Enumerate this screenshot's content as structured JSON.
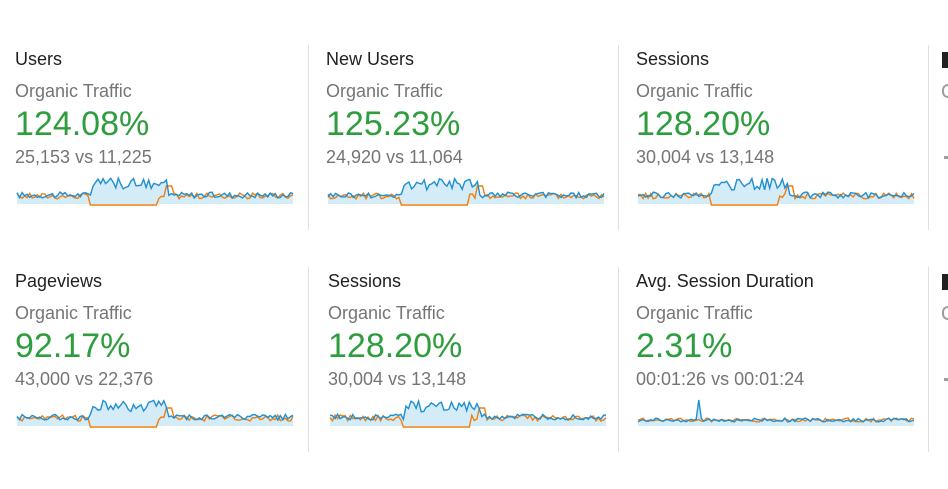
{
  "cards": [
    {
      "metric": "Users",
      "segment": "Organic Traffic",
      "change": "124.08%",
      "current": "25,153",
      "vs": "vs",
      "previous": "11,225"
    },
    {
      "metric": "New Users",
      "segment": "Organic Traffic",
      "change": "125.23%",
      "current": "24,920",
      "vs": "vs",
      "previous": "11,064"
    },
    {
      "metric": "Sessions",
      "segment": "Organic Traffic",
      "change": "128.20%",
      "current": "30,004",
      "vs": "vs",
      "previous": "13,148"
    },
    {
      "metric": "Pageviews",
      "segment": "Organic Traffic",
      "change": "92.17%",
      "current": "43,000",
      "vs": "vs",
      "previous": "22,376"
    },
    {
      "metric": "Sessions",
      "segment": "Organic Traffic",
      "change": "128.20%",
      "current": "30,004",
      "vs": "vs",
      "previous": "13,148"
    },
    {
      "metric": "Avg. Session Duration",
      "segment": "Organic Traffic",
      "change": "2.31%",
      "current": "00:01:26",
      "vs": "vs",
      "previous": "00:01:24"
    }
  ],
  "colors": {
    "current_series": "#1f8fd1",
    "previous_series": "#f07f0f",
    "area_fill": "#d4ebf8",
    "positive_change": "#2e9d3e"
  }
}
